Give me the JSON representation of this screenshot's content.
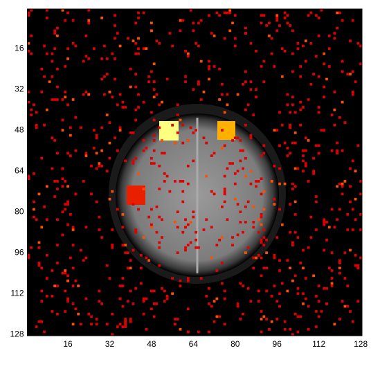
{
  "chart_data": {
    "type": "image",
    "xlim": [
      0.5,
      128.5
    ],
    "ylim": [
      0.5,
      128.5
    ],
    "xticks": [
      16,
      32,
      48,
      64,
      80,
      96,
      112,
      128
    ],
    "yticks": [
      16,
      32,
      48,
      64,
      80,
      96,
      112,
      128
    ]
  }
}
